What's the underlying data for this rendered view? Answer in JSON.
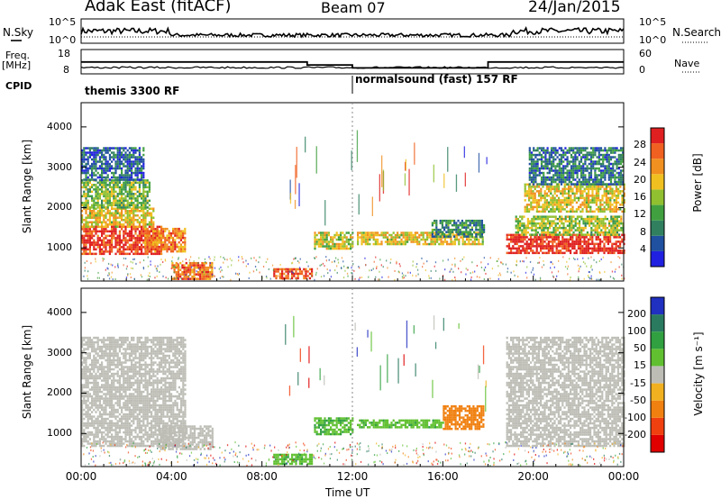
{
  "header": {
    "station": "Adak East (fitACF)",
    "beam": "Beam 07",
    "date": "24/Jan/2015"
  },
  "top_panels": {
    "nsky_label": "N.Sky",
    "nsky_ticks": [
      "10^5",
      "10^0"
    ],
    "nsearch_label": "N.Search",
    "nsearch_ticks": [
      "10^5",
      "10^0"
    ],
    "freq_label": "Freq.",
    "freq_unit": "[MHz]",
    "freq_ticks": [
      "18",
      "8"
    ],
    "nave_label": "Nave",
    "nave_ticks": [
      "60",
      "0"
    ],
    "cpid_label": "CPID",
    "cpid_segments": [
      "themis 3300 RF",
      "normalsound (fast) 157 RF"
    ]
  },
  "colors": {
    "power": [
      "#2020e0",
      "#2050a0",
      "#308060",
      "#40a040",
      "#90c030",
      "#f0c020",
      "#f09020",
      "#f06020",
      "#e02020"
    ],
    "velocity": [
      "#e00000",
      "#f04010",
      "#f08010",
      "#f0b020",
      "#bdbdb6",
      "#60c030",
      "#30a040",
      "#2a7a60",
      "#2030c0"
    ]
  },
  "chart_data": [
    {
      "type": "heatmap",
      "name": "power",
      "ylabel": "Slant Range [km]",
      "ylim": [
        180,
        4600
      ],
      "y_ticks": [
        "4000",
        "3000",
        "2000",
        "1000"
      ],
      "xlim": [
        0,
        24
      ],
      "colorbar_label": "Power [dB]",
      "colorbar_ticks": [
        "28",
        "24",
        "20",
        "16",
        "12",
        "8",
        "4"
      ],
      "colorbar_range": [
        0,
        32
      ],
      "regions": [
        {
          "t": [
            0.0,
            3.6
          ],
          "r": [
            850,
            1550
          ],
          "level": 0.92
        },
        {
          "t": [
            0.0,
            3.2
          ],
          "r": [
            1550,
            2000
          ],
          "level": 0.6
        },
        {
          "t": [
            0.0,
            3.0
          ],
          "r": [
            2000,
            2700
          ],
          "level": 0.45
        },
        {
          "t": [
            0.0,
            2.8
          ],
          "r": [
            2700,
            3500
          ],
          "level": 0.2
        },
        {
          "t": [
            2.8,
            4.6
          ],
          "r": [
            900,
            1500
          ],
          "level": 0.75
        },
        {
          "t": [
            4.0,
            5.8
          ],
          "r": [
            250,
            650
          ],
          "level": 0.8
        },
        {
          "t": [
            8.5,
            10.2
          ],
          "r": [
            250,
            500
          ],
          "level": 0.85
        },
        {
          "t": [
            10.3,
            12.0
          ],
          "r": [
            1000,
            1400
          ],
          "level": 0.55
        },
        {
          "t": [
            12.2,
            17.8
          ],
          "r": [
            1100,
            1400
          ],
          "level": 0.6
        },
        {
          "t": [
            15.5,
            17.8
          ],
          "r": [
            1300,
            1700
          ],
          "level": 0.3
        },
        {
          "t": [
            18.8,
            24.0
          ],
          "r": [
            850,
            1350
          ],
          "level": 0.95
        },
        {
          "t": [
            19.2,
            24.0
          ],
          "r": [
            1350,
            1800
          ],
          "level": 0.5
        },
        {
          "t": [
            19.6,
            24.0
          ],
          "r": [
            1900,
            2600
          ],
          "level": 0.6
        },
        {
          "t": [
            19.8,
            24.0
          ],
          "r": [
            2600,
            3500
          ],
          "level": 0.25
        }
      ]
    },
    {
      "type": "heatmap",
      "name": "velocity",
      "ylabel": "Slant Range [km]",
      "ylim": [
        180,
        4600
      ],
      "y_ticks": [
        "4000",
        "3000",
        "2000",
        "1000"
      ],
      "xlim": [
        0,
        24
      ],
      "xlabel": "Time UT",
      "x_ticks": [
        "00:00",
        "04:00",
        "08:00",
        "12:00",
        "16:00",
        "20:00",
        "00:00"
      ],
      "colorbar_label": "Velocity [m s⁻¹]",
      "colorbar_ticks": [
        "200",
        "100",
        "50",
        "15",
        "-15",
        "-50",
        "-100",
        "-200"
      ],
      "regions": [
        {
          "t": [
            0.0,
            4.6
          ],
          "r": [
            700,
            3400
          ],
          "v": 0
        },
        {
          "t": [
            3.4,
            5.8
          ],
          "r": [
            600,
            1200
          ],
          "v": 0
        },
        {
          "t": [
            8.5,
            10.2
          ],
          "r": [
            250,
            500
          ],
          "v": 40
        },
        {
          "t": [
            10.3,
            12.0
          ],
          "r": [
            1000,
            1400
          ],
          "v": 45
        },
        {
          "t": [
            12.2,
            16.0
          ],
          "r": [
            1150,
            1350
          ],
          "v": 40
        },
        {
          "t": [
            16.0,
            17.8
          ],
          "r": [
            1100,
            1700
          ],
          "v": -60
        },
        {
          "t": [
            18.8,
            24.0
          ],
          "r": [
            700,
            3400
          ],
          "v": 0
        }
      ]
    }
  ]
}
